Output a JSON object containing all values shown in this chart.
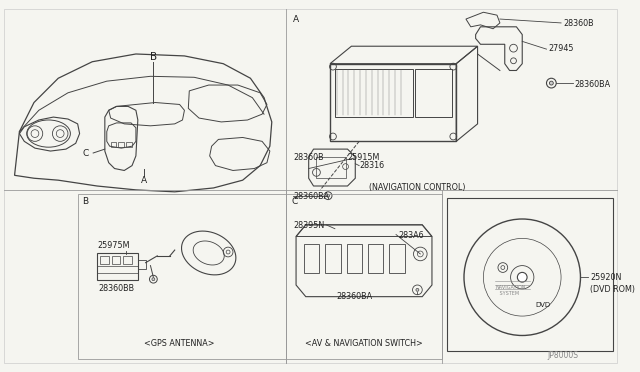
{
  "bg_color": "#f5f5f0",
  "line_color": "#444444",
  "text_color": "#222222",
  "gray_color": "#888888",
  "light_gray": "#cccccc",
  "font_size_tiny": 5.0,
  "font_size_small": 5.8,
  "font_size_med": 7.5,
  "divider_color": "#999999",
  "sections": {
    "A_label": "A",
    "B_label": "B",
    "C_label": "C"
  },
  "labels": {
    "28360B_top": "28360B",
    "27945": "27945",
    "28360BA_top": "28360BA",
    "25915M": "25915M",
    "28360B_bot": "28360B",
    "28316": "28316",
    "28360BA_bot": "28360BA",
    "nav_control": "(NAVIGATION CONTROL)",
    "25975M": "25975M",
    "28360BB": "28360BB",
    "gps_antenna": "<GPS ANTENNA>",
    "28395N": "28395N",
    "283A6": "283A6",
    "28360BA_c": "28360BA",
    "av_nav_switch": "<AV & NAVIGATION SWITCH>",
    "25920N": "25920N",
    "dvd_rom": "(DVD ROM)",
    "diagram_no": "JP8000S"
  }
}
